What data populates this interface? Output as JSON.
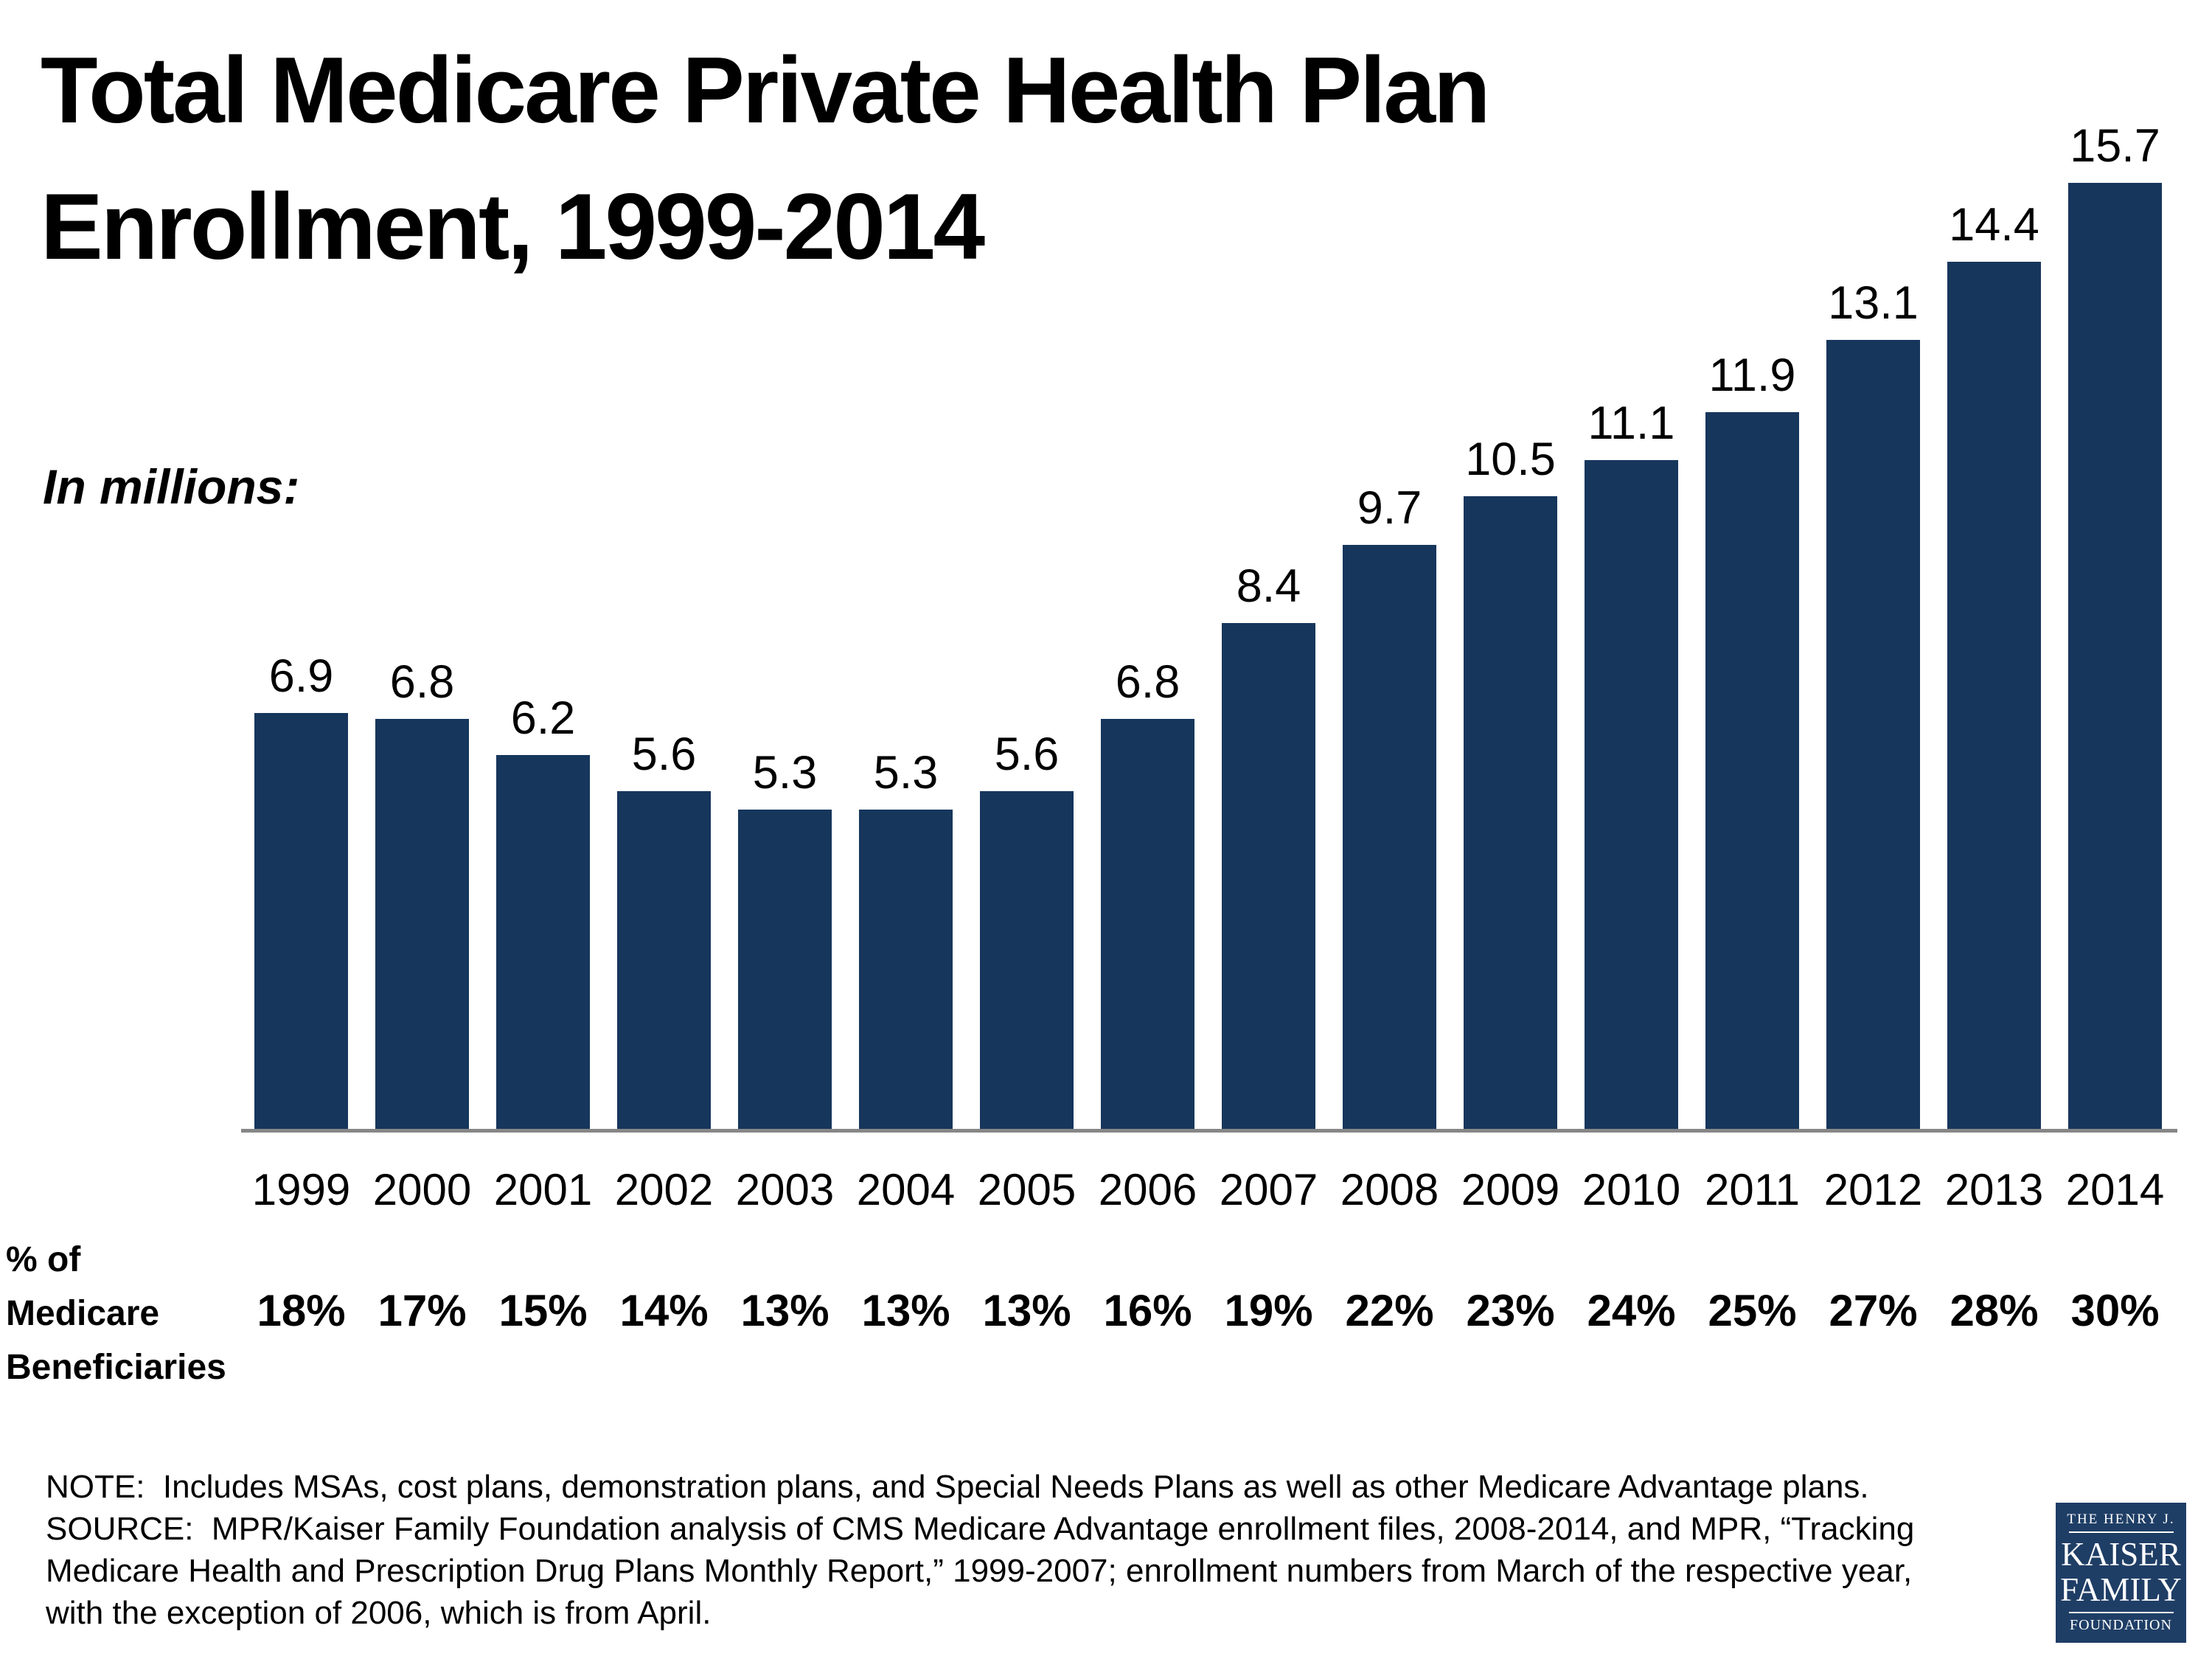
{
  "page": {
    "title_line1": "Total Medicare Private Health Plan",
    "title_line2": "Enrollment, 1999-2014",
    "units_label": "In millions:",
    "row_label": "% of\nMedicare\nBeneficiaries"
  },
  "chart_data": {
    "type": "bar",
    "title": "Total Medicare Private Health Plan Enrollment, 1999-2014",
    "ylabel": "Enrollment (millions)",
    "xlabel": "",
    "categories": [
      "1999",
      "2000",
      "2001",
      "2002",
      "2003",
      "2004",
      "2005",
      "2006",
      "2007",
      "2008",
      "2009",
      "2010",
      "2011",
      "2012",
      "2013",
      "2014"
    ],
    "values": [
      6.9,
      6.8,
      6.2,
      5.6,
      5.3,
      5.3,
      5.6,
      6.8,
      8.4,
      9.7,
      10.5,
      11.1,
      11.9,
      13.1,
      14.4,
      15.7
    ],
    "pct_of_medicare_beneficiaries": [
      "18%",
      "17%",
      "15%",
      "14%",
      "13%",
      "13%",
      "13%",
      "16%",
      "19%",
      "22%",
      "23%",
      "24%",
      "25%",
      "27%",
      "28%",
      "30%"
    ],
    "ylim": [
      0,
      15.7
    ],
    "grid": false,
    "legend": false,
    "bar_color": "#16365C",
    "axis_color": "#878787",
    "data_labels": true
  },
  "notes": {
    "lines": [
      "NOTE:  Includes MSAs, cost plans, demonstration plans, and Special Needs Plans as well as other Medicare Advantage plans.",
      "SOURCE:  MPR/Kaiser Family Foundation analysis of CMS Medicare Advantage enrollment files, 2008-2014, and MPR, “Tracking",
      "Medicare Health and Prescription Drug Plans Monthly Report,” 1999-2007; enrollment numbers from March of the respective year,",
      "with the exception of 2006, which is from April."
    ]
  },
  "logo": {
    "line1": "THE HENRY J.",
    "line2": "KAISER",
    "line3": "FAMILY",
    "line4": "FOUNDATION",
    "bg_color": "#1F3E66"
  }
}
